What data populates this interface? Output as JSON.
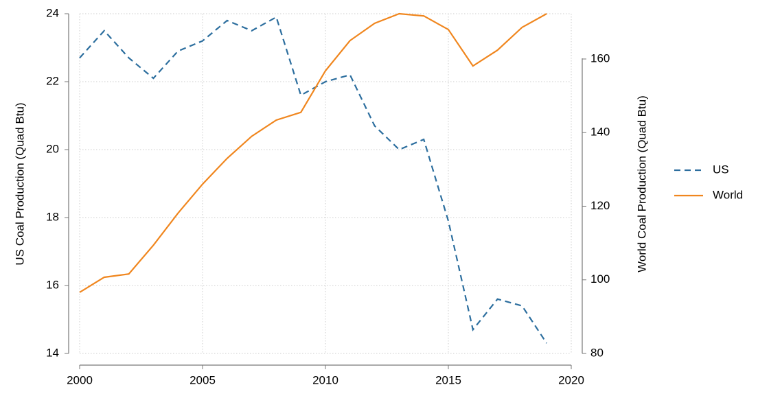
{
  "chart_data": {
    "type": "line",
    "x": [
      2000,
      2001,
      2002,
      2003,
      2004,
      2005,
      2006,
      2007,
      2008,
      2009,
      2010,
      2011,
      2012,
      2013,
      2014,
      2015,
      2016,
      2017,
      2018,
      2019
    ],
    "series": [
      {
        "name": "US",
        "color": "#2c6e9e",
        "dash": true,
        "values": [
          22.7,
          23.5,
          22.7,
          22.1,
          22.9,
          23.2,
          23.8,
          23.5,
          23.9,
          21.6,
          22.0,
          22.2,
          20.7,
          20.0,
          20.3,
          17.9,
          14.7,
          15.6,
          15.4,
          14.3
        ]
      },
      {
        "name": "World",
        "color": "#f0861e",
        "dash": false,
        "axis": "y2",
        "values": [
          96.6,
          100.7,
          101.6,
          109.4,
          118.1,
          126.0,
          133.0,
          139.0,
          143.4,
          145.5,
          156.8,
          165.0,
          169.7,
          172.3,
          171.7,
          168.0,
          158.1,
          162.4,
          168.6,
          172.3
        ]
      }
    ],
    "xlim": [
      2000,
      2020
    ],
    "xticks": [
      2000,
      2005,
      2010,
      2015,
      2020
    ],
    "ylim": [
      14,
      24
    ],
    "yticks": [
      14,
      16,
      18,
      20,
      22,
      24
    ],
    "y2lim": [
      80,
      172.3
    ],
    "y2ticks": [
      80,
      100,
      120,
      140,
      160
    ],
    "ylabel": "US Coal Production (Quad Btu)",
    "y2label": "World Coal Production (Quad Btu)",
    "grid": true,
    "legend": "right"
  }
}
